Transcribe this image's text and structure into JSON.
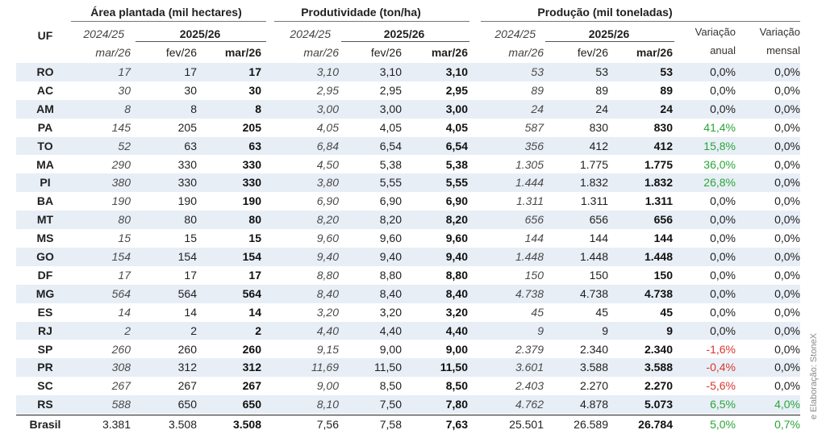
{
  "headers": {
    "uf": "UF",
    "area": "Área plantada (mil hectares)",
    "prod": "Produtividade (ton/ha)",
    "producao": "Produção (mil toneladas)",
    "var_anual_l1": "Variação",
    "var_anual_l2": "anual",
    "var_mensal_l1": "Variação",
    "var_mensal_l2": "mensal",
    "year_prev": "2024/25",
    "year_curr": "2025/26",
    "mar26": "mar/26",
    "fev26": "fev/26"
  },
  "rows": [
    {
      "uf": "RO",
      "a24": "17",
      "afev": "17",
      "amar": "17",
      "p24": "3,10",
      "pfev": "3,10",
      "pmar": "3,10",
      "q24": "53",
      "qfev": "53",
      "qmar": "53",
      "va": "0,0%",
      "va_color": "#1f1f1f",
      "vm": "0,0%",
      "vm_color": "#1f1f1f"
    },
    {
      "uf": "AC",
      "a24": "30",
      "afev": "30",
      "amar": "30",
      "p24": "2,95",
      "pfev": "2,95",
      "pmar": "2,95",
      "q24": "89",
      "qfev": "89",
      "qmar": "89",
      "va": "0,0%",
      "va_color": "#1f1f1f",
      "vm": "0,0%",
      "vm_color": "#1f1f1f"
    },
    {
      "uf": "AM",
      "a24": "8",
      "afev": "8",
      "amar": "8",
      "p24": "3,00",
      "pfev": "3,00",
      "pmar": "3,00",
      "q24": "24",
      "qfev": "24",
      "qmar": "24",
      "va": "0,0%",
      "va_color": "#1f1f1f",
      "vm": "0,0%",
      "vm_color": "#1f1f1f"
    },
    {
      "uf": "PA",
      "a24": "145",
      "afev": "205",
      "amar": "205",
      "p24": "4,05",
      "pfev": "4,05",
      "pmar": "4,05",
      "q24": "587",
      "qfev": "830",
      "qmar": "830",
      "va": "41,4%",
      "va_color": "#2aa63a",
      "vm": "0,0%",
      "vm_color": "#1f1f1f"
    },
    {
      "uf": "TO",
      "a24": "52",
      "afev": "63",
      "amar": "63",
      "p24": "6,84",
      "pfev": "6,54",
      "pmar": "6,54",
      "q24": "356",
      "qfev": "412",
      "qmar": "412",
      "va": "15,8%",
      "va_color": "#2aa63a",
      "vm": "0,0%",
      "vm_color": "#1f1f1f"
    },
    {
      "uf": "MA",
      "a24": "290",
      "afev": "330",
      "amar": "330",
      "p24": "4,50",
      "pfev": "5,38",
      "pmar": "5,38",
      "q24": "1.305",
      "qfev": "1.775",
      "qmar": "1.775",
      "va": "36,0%",
      "va_color": "#2aa63a",
      "vm": "0,0%",
      "vm_color": "#1f1f1f"
    },
    {
      "uf": "PI",
      "a24": "380",
      "afev": "330",
      "amar": "330",
      "p24": "3,80",
      "pfev": "5,55",
      "pmar": "5,55",
      "q24": "1.444",
      "qfev": "1.832",
      "qmar": "1.832",
      "va": "26,8%",
      "va_color": "#2aa63a",
      "vm": "0,0%",
      "vm_color": "#1f1f1f"
    },
    {
      "uf": "BA",
      "a24": "190",
      "afev": "190",
      "amar": "190",
      "p24": "6,90",
      "pfev": "6,90",
      "pmar": "6,90",
      "q24": "1.311",
      "qfev": "1.311",
      "qmar": "1.311",
      "va": "0,0%",
      "va_color": "#1f1f1f",
      "vm": "0,0%",
      "vm_color": "#1f1f1f"
    },
    {
      "uf": "MT",
      "a24": "80",
      "afev": "80",
      "amar": "80",
      "p24": "8,20",
      "pfev": "8,20",
      "pmar": "8,20",
      "q24": "656",
      "qfev": "656",
      "qmar": "656",
      "va": "0,0%",
      "va_color": "#1f1f1f",
      "vm": "0,0%",
      "vm_color": "#1f1f1f"
    },
    {
      "uf": "MS",
      "a24": "15",
      "afev": "15",
      "amar": "15",
      "p24": "9,60",
      "pfev": "9,60",
      "pmar": "9,60",
      "q24": "144",
      "qfev": "144",
      "qmar": "144",
      "va": "0,0%",
      "va_color": "#1f1f1f",
      "vm": "0,0%",
      "vm_color": "#1f1f1f"
    },
    {
      "uf": "GO",
      "a24": "154",
      "afev": "154",
      "amar": "154",
      "p24": "9,40",
      "pfev": "9,40",
      "pmar": "9,40",
      "q24": "1.448",
      "qfev": "1.448",
      "qmar": "1.448",
      "va": "0,0%",
      "va_color": "#1f1f1f",
      "vm": "0,0%",
      "vm_color": "#1f1f1f"
    },
    {
      "uf": "DF",
      "a24": "17",
      "afev": "17",
      "amar": "17",
      "p24": "8,80",
      "pfev": "8,80",
      "pmar": "8,80",
      "q24": "150",
      "qfev": "150",
      "qmar": "150",
      "va": "0,0%",
      "va_color": "#1f1f1f",
      "vm": "0,0%",
      "vm_color": "#1f1f1f"
    },
    {
      "uf": "MG",
      "a24": "564",
      "afev": "564",
      "amar": "564",
      "p24": "8,40",
      "pfev": "8,40",
      "pmar": "8,40",
      "q24": "4.738",
      "qfev": "4.738",
      "qmar": "4.738",
      "va": "0,0%",
      "va_color": "#1f1f1f",
      "vm": "0,0%",
      "vm_color": "#1f1f1f"
    },
    {
      "uf": "ES",
      "a24": "14",
      "afev": "14",
      "amar": "14",
      "p24": "3,20",
      "pfev": "3,20",
      "pmar": "3,20",
      "q24": "45",
      "qfev": "45",
      "qmar": "45",
      "va": "0,0%",
      "va_color": "#1f1f1f",
      "vm": "0,0%",
      "vm_color": "#1f1f1f"
    },
    {
      "uf": "RJ",
      "a24": "2",
      "afev": "2",
      "amar": "2",
      "p24": "4,40",
      "pfev": "4,40",
      "pmar": "4,40",
      "q24": "9",
      "qfev": "9",
      "qmar": "9",
      "va": "0,0%",
      "va_color": "#1f1f1f",
      "vm": "0,0%",
      "vm_color": "#1f1f1f"
    },
    {
      "uf": "SP",
      "a24": "260",
      "afev": "260",
      "amar": "260",
      "p24": "9,15",
      "pfev": "9,00",
      "pmar": "9,00",
      "q24": "2.379",
      "qfev": "2.340",
      "qmar": "2.340",
      "va": "-1,6%",
      "va_color": "#d9362f",
      "vm": "0,0%",
      "vm_color": "#1f1f1f"
    },
    {
      "uf": "PR",
      "a24": "308",
      "afev": "312",
      "amar": "312",
      "p24": "11,69",
      "pfev": "11,50",
      "pmar": "11,50",
      "q24": "3.601",
      "qfev": "3.588",
      "qmar": "3.588",
      "va": "-0,4%",
      "va_color": "#d9362f",
      "vm": "0,0%",
      "vm_color": "#1f1f1f"
    },
    {
      "uf": "SC",
      "a24": "267",
      "afev": "267",
      "amar": "267",
      "p24": "9,00",
      "pfev": "8,50",
      "pmar": "8,50",
      "q24": "2.403",
      "qfev": "2.270",
      "qmar": "2.270",
      "va": "-5,6%",
      "va_color": "#d9362f",
      "vm": "0,0%",
      "vm_color": "#1f1f1f"
    },
    {
      "uf": "RS",
      "a24": "588",
      "afev": "650",
      "amar": "650",
      "p24": "8,10",
      "pfev": "7,50",
      "pmar": "7,80",
      "q24": "4.762",
      "qfev": "4.878",
      "qmar": "5.073",
      "va": "6,5%",
      "va_color": "#2aa63a",
      "vm": "4,0%",
      "vm_color": "#2aa63a"
    }
  ],
  "total": {
    "uf": "Brasil",
    "a24": "3.381",
    "afev": "3.508",
    "amar": "3.508",
    "p24": "7,56",
    "pfev": "7,58",
    "pmar": "7,63",
    "q24": "25.501",
    "qfev": "26.589",
    "qmar": "26.784",
    "va": "5,0%",
    "va_color": "#2aa63a",
    "vm": "0,7%",
    "vm_color": "#2aa63a"
  },
  "source_note": "e Elaboração: StoneX"
}
